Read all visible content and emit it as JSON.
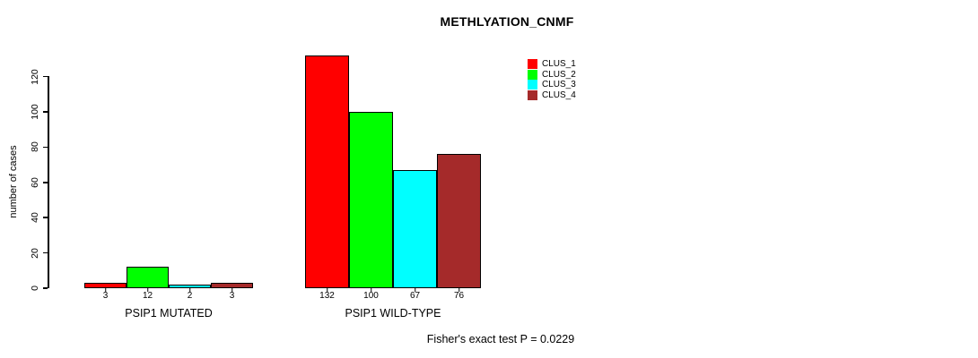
{
  "title": "METHLYATION_CNMF",
  "footer": "Fisher's exact test P = 0.0229",
  "y_axis": {
    "label": "number of cases",
    "ticks": [
      0,
      20,
      40,
      60,
      80,
      100,
      120
    ]
  },
  "legend": {
    "position": "top-right",
    "items": [
      {
        "label": "CLUS_1",
        "color": "#FF0000"
      },
      {
        "label": "CLUS_2",
        "color": "#00FF00"
      },
      {
        "label": "CLUS_3",
        "color": "#00FFFF"
      },
      {
        "label": "CLUS_4",
        "color": "#A52A2A"
      }
    ]
  },
  "chart_data": {
    "type": "bar",
    "title": "METHLYATION_CNMF",
    "xlabel": "",
    "ylabel": "number of cases",
    "ylim": [
      0,
      132
    ],
    "yticks": [
      0,
      20,
      40,
      60,
      80,
      100,
      120
    ],
    "grid": false,
    "legend_position": "top-right",
    "categories": [
      "PSIP1 MUTATED",
      "PSIP1 WILD-TYPE"
    ],
    "series": [
      {
        "name": "CLUS_1",
        "color": "#FF0000",
        "values": [
          3,
          132
        ]
      },
      {
        "name": "CLUS_2",
        "color": "#00FF00",
        "values": [
          12,
          100
        ]
      },
      {
        "name": "CLUS_3",
        "color": "#00FFFF",
        "values": [
          2,
          67
        ]
      },
      {
        "name": "CLUS_4",
        "color": "#A52A2A",
        "values": [
          3,
          76
        ]
      }
    ],
    "bar_value_labels": [
      [
        3,
        12,
        2,
        3
      ],
      [
        132,
        100,
        67,
        76
      ]
    ],
    "annotation": "Fisher's exact test P = 0.0229"
  }
}
